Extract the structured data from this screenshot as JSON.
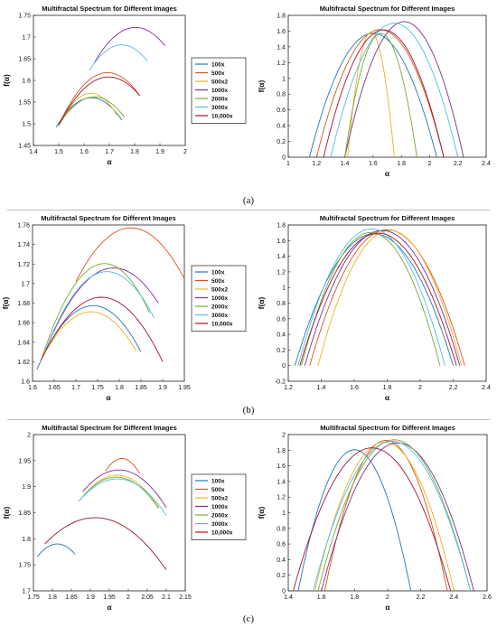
{
  "panel_labels": [
    "(a)",
    "(b)",
    "(c)"
  ],
  "series_colors": [
    "#1f77b4",
    "#d95319",
    "#edb120",
    "#7e2f8e",
    "#77ac30",
    "#4dbeee",
    "#a2142f"
  ],
  "chart_data": [
    {
      "id": "a-left",
      "type": "line",
      "title": "Multifractal Spectrum for Different Images",
      "xlabel": "α",
      "ylabel": "f(α)",
      "xlim": [
        1.4,
        2
      ],
      "ylim": [
        1.45,
        1.75
      ],
      "xticks": [
        1.4,
        1.5,
        1.6,
        1.7,
        1.8,
        1.9,
        2
      ],
      "yticks": [
        1.45,
        1.5,
        1.55,
        1.6,
        1.65,
        1.7,
        1.75
      ],
      "xtick_labels": [
        "1.4",
        "1.5",
        "1.6",
        "1.7",
        "1.8",
        "1.9",
        "2"
      ],
      "ytick_labels": [
        "1.45",
        "1.5",
        "1.55",
        "1.6",
        "1.65",
        "1.7",
        "1.75"
      ],
      "legend": "right",
      "series": [
        {
          "name": "100x",
          "x": [
            1.49,
            1.63,
            1.75
          ],
          "y": [
            1.492,
            1.56,
            1.508
          ]
        },
        {
          "name": "500x",
          "x": [
            1.5,
            1.69,
            1.82
          ],
          "y": [
            1.497,
            1.618,
            1.565
          ]
        },
        {
          "name": "500x2",
          "x": [
            1.5,
            1.62,
            1.73
          ],
          "y": [
            1.495,
            1.57,
            1.52
          ]
        },
        {
          "name": "1000x",
          "x": [
            1.64,
            1.81,
            1.92
          ],
          "y": [
            1.64,
            1.722,
            1.68
          ]
        },
        {
          "name": "2000x",
          "x": [
            1.5,
            1.64,
            1.76
          ],
          "y": [
            1.497,
            1.562,
            1.515
          ]
        },
        {
          "name": "3000x",
          "x": [
            1.62,
            1.75,
            1.85
          ],
          "y": [
            1.622,
            1.682,
            1.645
          ]
        },
        {
          "name": "10,000x",
          "x": [
            1.5,
            1.7,
            1.82
          ],
          "y": [
            1.497,
            1.608,
            1.565
          ]
        }
      ]
    },
    {
      "id": "a-right",
      "type": "line",
      "title": "Multifractal Spectrum for Different Images",
      "xlabel": "α",
      "ylabel": "f(α)",
      "xlim": [
        1,
        2.4
      ],
      "ylim": [
        0,
        1.8
      ],
      "xticks": [
        1,
        1.2,
        1.4,
        1.6,
        1.8,
        2,
        2.2,
        2.4
      ],
      "yticks": [
        0,
        0.2,
        0.4,
        0.6,
        0.8,
        1,
        1.2,
        1.4,
        1.6,
        1.8
      ],
      "xtick_labels": [
        "1",
        "1.2",
        "1.4",
        "1.6",
        "1.8",
        "2",
        "2.2",
        "2.4"
      ],
      "ytick_labels": [
        "0",
        "0.2",
        "0.4",
        "0.6",
        "0.8",
        "1",
        "1.2",
        "1.4",
        "1.6",
        "1.8"
      ],
      "series": [
        {
          "name": "100x",
          "x": [
            1.15,
            1.62,
            2.05
          ],
          "y": [
            0,
            1.57,
            0
          ]
        },
        {
          "name": "500x",
          "x": [
            1.2,
            1.7,
            2.1
          ],
          "y": [
            0,
            1.6,
            0
          ]
        },
        {
          "name": "500x2",
          "x": [
            1.42,
            1.6,
            1.75
          ],
          "y": [
            0,
            1.57,
            0
          ]
        },
        {
          "name": "1000x",
          "x": [
            1.4,
            1.82,
            2.24
          ],
          "y": [
            0,
            1.72,
            0
          ]
        },
        {
          "name": "2000x",
          "x": [
            1.4,
            1.65,
            1.91
          ],
          "y": [
            0,
            1.57,
            0
          ]
        },
        {
          "name": "3000x",
          "x": [
            1.3,
            1.8,
            2.2
          ],
          "y": [
            0,
            1.68,
            0
          ]
        },
        {
          "name": "10,000x",
          "x": [
            1.25,
            1.7,
            2.1
          ],
          "y": [
            0,
            1.61,
            0
          ]
        }
      ]
    },
    {
      "id": "b-left",
      "type": "line",
      "title": "Multifractal Spectrum for Different Images",
      "xlabel": "α",
      "ylabel": "f(α)",
      "xlim": [
        1.6,
        1.95
      ],
      "ylim": [
        1.6,
        1.76
      ],
      "xticks": [
        1.6,
        1.65,
        1.7,
        1.75,
        1.8,
        1.85,
        1.9,
        1.95
      ],
      "yticks": [
        1.6,
        1.62,
        1.64,
        1.66,
        1.68,
        1.7,
        1.72,
        1.74,
        1.76
      ],
      "xtick_labels": [
        "1.6",
        "1.65",
        "1.7",
        "1.75",
        "1.8",
        "1.85",
        "1.9",
        "1.95"
      ],
      "ytick_labels": [
        "1.6",
        "1.62",
        "1.64",
        "1.66",
        "1.68",
        "1.7",
        "1.72",
        "1.74",
        "1.76"
      ],
      "legend": "right",
      "series": [
        {
          "name": "100x",
          "x": [
            1.61,
            1.75,
            1.85
          ],
          "y": [
            1.612,
            1.677,
            1.63
          ]
        },
        {
          "name": "500x",
          "x": [
            1.7,
            1.83,
            1.95
          ],
          "y": [
            1.702,
            1.757,
            1.705
          ]
        },
        {
          "name": "500x2",
          "x": [
            1.62,
            1.73,
            1.84
          ],
          "y": [
            1.622,
            1.671,
            1.63
          ]
        },
        {
          "name": "1000x",
          "x": [
            1.63,
            1.79,
            1.89
          ],
          "y": [
            1.632,
            1.716,
            1.68
          ]
        },
        {
          "name": "2000x",
          "x": [
            1.62,
            1.8,
            1.87
          ],
          "y": [
            1.622,
            1.715,
            1.67
          ]
        },
        {
          "name": "3000x",
          "x": [
            1.63,
            1.78,
            1.88
          ],
          "y": [
            1.632,
            1.712,
            1.665
          ]
        },
        {
          "name": "10,000x",
          "x": [
            1.62,
            1.76,
            1.9
          ],
          "y": [
            1.622,
            1.686,
            1.62
          ]
        }
      ]
    },
    {
      "id": "b-right",
      "type": "line",
      "title": "Multifractal Spectrum for Different Images",
      "xlabel": "α",
      "ylabel": "f(α)",
      "xlim": [
        1.2,
        2.4
      ],
      "ylim": [
        -0.2,
        1.8
      ],
      "xticks": [
        1.2,
        1.4,
        1.6,
        1.8,
        2,
        2.2,
        2.4
      ],
      "yticks": [
        -0.2,
        0,
        0.2,
        0.4,
        0.6,
        0.8,
        1,
        1.2,
        1.4,
        1.6,
        1.8
      ],
      "xtick_labels": [
        "1.2",
        "1.4",
        "1.6",
        "1.8",
        "2",
        "2.2",
        "2.4"
      ],
      "ytick_labels": [
        "-0.2",
        "0",
        "0.2",
        "0.4",
        "0.6",
        "0.8",
        "1",
        "1.2",
        "1.4",
        "1.6",
        "1.8"
      ],
      "series": [
        {
          "name": "100x",
          "x": [
            1.24,
            1.75,
            2.2
          ],
          "y": [
            0,
            1.68,
            0
          ]
        },
        {
          "name": "500x",
          "x": [
            1.33,
            1.85,
            2.27
          ],
          "y": [
            0,
            1.72,
            0
          ]
        },
        {
          "name": "500x2",
          "x": [
            1.38,
            1.85,
            2.25
          ],
          "y": [
            0,
            1.72,
            0
          ]
        },
        {
          "name": "1000x",
          "x": [
            1.3,
            1.82,
            2.24
          ],
          "y": [
            0,
            1.71,
            0
          ]
        },
        {
          "name": "2000x",
          "x": [
            1.28,
            1.75,
            2.12
          ],
          "y": [
            0,
            1.68,
            0
          ]
        },
        {
          "name": "3000x",
          "x": [
            1.26,
            1.78,
            2.15
          ],
          "y": [
            0,
            1.7,
            0
          ]
        },
        {
          "name": "10,000x",
          "x": [
            1.27,
            1.77,
            2.22
          ],
          "y": [
            0,
            1.69,
            0
          ]
        }
      ]
    },
    {
      "id": "c-left",
      "type": "line",
      "title": "Multifractal Spectrum for Different Images",
      "xlabel": "α",
      "ylabel": "f(α)",
      "xlim": [
        1.75,
        2.15
      ],
      "ylim": [
        1.7,
        2
      ],
      "xticks": [
        1.75,
        1.8,
        1.85,
        1.9,
        1.95,
        2,
        2.05,
        2.1,
        2.15
      ],
      "yticks": [
        1.7,
        1.75,
        1.8,
        1.85,
        1.9,
        1.95,
        2
      ],
      "xtick_labels": [
        "1.75",
        "1.8",
        "1.85",
        "1.9",
        "1.95",
        "2",
        "2.05",
        "2.1",
        "2.15"
      ],
      "ytick_labels": [
        "1.7",
        "1.75",
        "1.8",
        "1.85",
        "1.9",
        "1.95",
        "2"
      ],
      "legend": "right",
      "series": [
        {
          "name": "100x",
          "x": [
            1.76,
            1.81,
            1.86
          ],
          "y": [
            1.765,
            1.79,
            1.77
          ]
        },
        {
          "name": "500x",
          "x": [
            1.94,
            1.98,
            2.03
          ],
          "y": [
            1.93,
            1.954,
            1.925
          ]
        },
        {
          "name": "500x2",
          "x": [
            1.88,
            1.97,
            2.08
          ],
          "y": [
            1.88,
            1.922,
            1.86
          ]
        },
        {
          "name": "1000x",
          "x": [
            1.88,
            1.97,
            2.1
          ],
          "y": [
            1.89,
            1.932,
            1.86
          ]
        },
        {
          "name": "2000x",
          "x": [
            1.87,
            1.96,
            2.08
          ],
          "y": [
            1.872,
            1.918,
            1.858
          ]
        },
        {
          "name": "3000x",
          "x": [
            1.87,
            1.97,
            2.1
          ],
          "y": [
            1.872,
            1.915,
            1.845
          ]
        },
        {
          "name": "10,000x",
          "x": [
            1.78,
            1.9,
            2.1
          ],
          "y": [
            1.79,
            1.84,
            1.74
          ]
        }
      ]
    },
    {
      "id": "c-right",
      "type": "line",
      "title": "Multifractal Spectrum for Different Images",
      "xlabel": "α",
      "ylabel": "f(α)",
      "xlim": [
        1.4,
        2.6
      ],
      "ylim": [
        0,
        2
      ],
      "xticks": [
        1.4,
        1.6,
        1.8,
        2,
        2.2,
        2.4,
        2.6
      ],
      "yticks": [
        0,
        0.2,
        0.4,
        0.6,
        0.8,
        1,
        1.2,
        1.4,
        1.6,
        1.8,
        2
      ],
      "xtick_labels": [
        "1.4",
        "1.6",
        "1.8",
        "2",
        "2.2",
        "2.4",
        "2.6"
      ],
      "ytick_labels": [
        "0",
        "0.2",
        "0.4",
        "0.6",
        "0.8",
        "1",
        "1.2",
        "1.4",
        "1.6",
        "1.8",
        "2"
      ],
      "series": [
        {
          "name": "100x",
          "x": [
            1.46,
            1.82,
            2.14
          ],
          "y": [
            0,
            1.8,
            0
          ]
        },
        {
          "name": "500x",
          "x": [
            1.62,
            1.97,
            2.36
          ],
          "y": [
            0,
            1.92,
            0
          ]
        },
        {
          "name": "500x2",
          "x": [
            1.56,
            2.0,
            2.4
          ],
          "y": [
            0,
            1.9,
            0
          ]
        },
        {
          "name": "1000x",
          "x": [
            1.6,
            2.02,
            2.52
          ],
          "y": [
            0,
            1.88,
            0
          ]
        },
        {
          "name": "2000x",
          "x": [
            1.58,
            2.02,
            2.5
          ],
          "y": [
            0,
            1.93,
            0
          ]
        },
        {
          "name": "3000x",
          "x": [
            1.55,
            2.0,
            2.5
          ],
          "y": [
            0,
            1.91,
            0
          ]
        },
        {
          "name": "10,000x",
          "x": [
            1.43,
            1.9,
            2.38
          ],
          "y": [
            0,
            1.83,
            0
          ]
        }
      ]
    }
  ]
}
